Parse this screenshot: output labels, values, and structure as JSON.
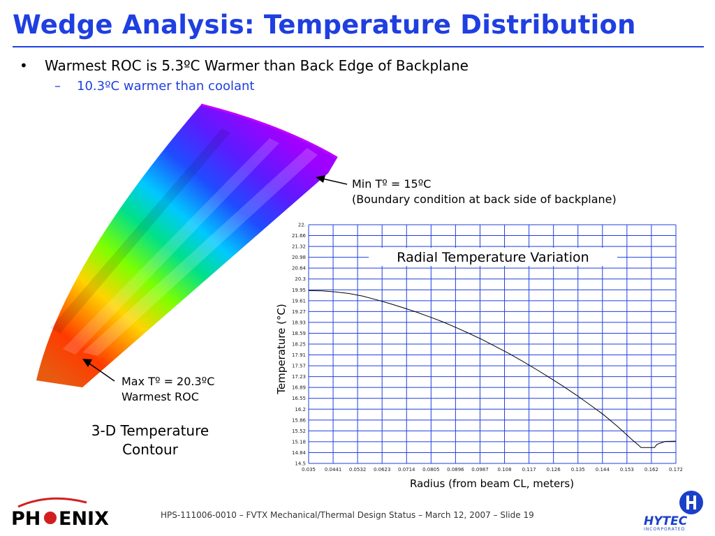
{
  "slide": {
    "title": "Wedge Analysis: Temperature Distribution",
    "bullet": "Warmest ROC is 5.3ºC Warmer than Back Edge of Backplane",
    "bullet_marker": "•",
    "sub_bullet": "10.3ºC warmer than coolant",
    "sub_marker": "–",
    "footer": "HPS-111006-0010 – FVTX Mechanical/Thermal Design Status – March 12, 2007 – Slide 19"
  },
  "contour": {
    "min_label": "Min Tº = 15ºC",
    "min_note": "(Boundary condition at back side of backplane)",
    "max_label": "Max Tº = 20.3ºC",
    "max_note": "Warmest ROC",
    "caption_line1": "3-D Temperature",
    "caption_line2": "Contour"
  },
  "logos": {
    "left_text_a": "PH",
    "left_text_b": "ENIX",
    "right_text": "HYTEC",
    "right_sub": "INCORPORATED",
    "right_color": "#1a3fc8",
    "left_arc_color": "#d11f1f"
  },
  "chart_data": {
    "type": "line",
    "title": "Radial Temperature Variation",
    "xlabel": "Radius (from beam CL, meters)",
    "ylabel": "Temperature (°C)",
    "xlim": [
      0.035,
      0.172
    ],
    "ylim": [
      14.5,
      22
    ],
    "grid": true,
    "line_color": "#000000",
    "grid_color": "#1f3fe0",
    "x_ticks": [
      "0.035",
      "0.0441",
      "0.0532",
      "0.0623",
      "0.0714",
      "0.0805",
      "0.0896",
      "0.0987",
      "0.108",
      "0.117",
      "0.126",
      "0.135",
      "0.144",
      "0.153",
      "0.162",
      "0.172"
    ],
    "y_ticks": [
      "22.",
      "21.66",
      "21.32",
      "20.98",
      "20.64",
      "20.3",
      "19.95",
      "19.61",
      "19.27",
      "18.93",
      "18.59",
      "18.25",
      "17.91",
      "17.57",
      "17.23",
      "16.89",
      "16.55",
      "16.2",
      "15.86",
      "15.52",
      "15.18",
      "14.84",
      "14.5"
    ],
    "series": [
      {
        "x": [
          0.035,
          0.04,
          0.045,
          0.05,
          0.055,
          0.06,
          0.065,
          0.07,
          0.075,
          0.08,
          0.085,
          0.09,
          0.095,
          0.1,
          0.105,
          0.11,
          0.115,
          0.12,
          0.125,
          0.13,
          0.135,
          0.14,
          0.145,
          0.15,
          0.153,
          0.156,
          0.158,
          0.159,
          0.16,
          0.162,
          0.164,
          0.165,
          0.168,
          0.172
        ],
        "y": [
          19.93,
          19.92,
          19.89,
          19.84,
          19.76,
          19.65,
          19.53,
          19.4,
          19.26,
          19.11,
          18.95,
          18.77,
          18.58,
          18.38,
          18.16,
          17.94,
          17.7,
          17.45,
          17.19,
          16.92,
          16.64,
          16.34,
          16.03,
          15.68,
          15.45,
          15.22,
          15.08,
          15.0,
          15.0,
          15.0,
          15.0,
          15.1,
          15.19,
          15.2
        ]
      }
    ]
  }
}
